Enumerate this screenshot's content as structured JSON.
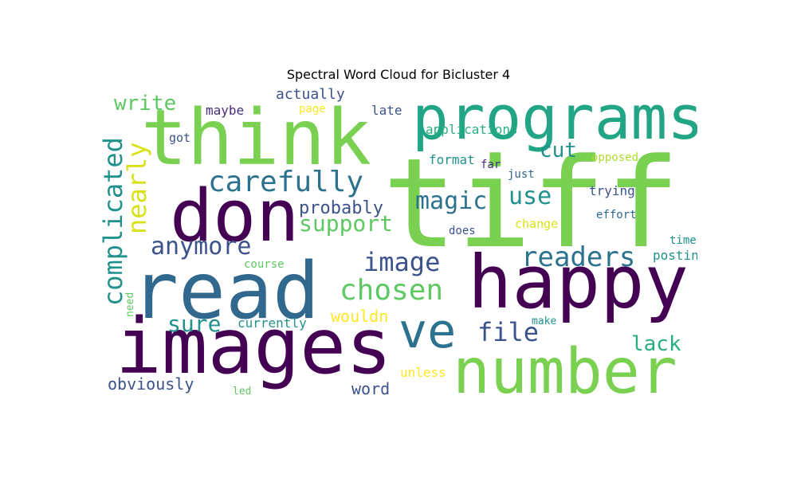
{
  "title": "Spectral Word Cloud for Bicluster 4",
  "palette": {
    "dark_purple": "#440154",
    "purple": "#472d7b",
    "indigo": "#3b528b",
    "blue": "#2c728e",
    "teal": "#21918c",
    "green_teal": "#28ae80",
    "green": "#5ec962",
    "lime": "#7ad151",
    "yellow_green": "#addc30",
    "yellow": "#fde725"
  },
  "words": [
    {
      "text": "tiff",
      "color": "#7ad151"
    },
    {
      "text": "programs",
      "color": "#21a585"
    },
    {
      "text": "think",
      "color": "#7ad151"
    },
    {
      "text": "don",
      "color": "#440154"
    },
    {
      "text": "read",
      "color": "#31688e"
    },
    {
      "text": "happy",
      "color": "#440154"
    },
    {
      "text": "images",
      "color": "#440154"
    },
    {
      "text": "number",
      "color": "#7ad151"
    },
    {
      "text": "ve",
      "color": "#2c728e"
    },
    {
      "text": "carefully",
      "color": "#2c728e"
    },
    {
      "text": "complicated",
      "color": "#21918c"
    },
    {
      "text": "nearly",
      "color": "#d8e219"
    },
    {
      "text": "write",
      "color": "#5ec962"
    },
    {
      "text": "anymore",
      "color": "#3b528b"
    },
    {
      "text": "support",
      "color": "#5ec962"
    },
    {
      "text": "probably",
      "color": "#3b528b"
    },
    {
      "text": "magic",
      "color": "#2c728e"
    },
    {
      "text": "use",
      "color": "#21918c"
    },
    {
      "text": "cut",
      "color": "#21918c"
    },
    {
      "text": "image",
      "color": "#3b528b"
    },
    {
      "text": "readers",
      "color": "#2c728e"
    },
    {
      "text": "chosen",
      "color": "#5ec962"
    },
    {
      "text": "file",
      "color": "#3b528b"
    },
    {
      "text": "sure",
      "color": "#21918c"
    },
    {
      "text": "lack",
      "color": "#28ae80"
    },
    {
      "text": "obviously",
      "color": "#3b528b"
    },
    {
      "text": "word",
      "color": "#3b528b"
    },
    {
      "text": "wouldn",
      "color": "#fde725"
    },
    {
      "text": "currently",
      "color": "#21918c"
    },
    {
      "text": "unless",
      "color": "#fde725"
    },
    {
      "text": "maybe",
      "color": "#472d7b"
    },
    {
      "text": "actually",
      "color": "#3b528b"
    },
    {
      "text": "page",
      "color": "#fde725"
    },
    {
      "text": "late",
      "color": "#3b528b"
    },
    {
      "text": "applications",
      "color": "#28ae80"
    },
    {
      "text": "got",
      "color": "#3b528b"
    },
    {
      "text": "format",
      "color": "#21918c"
    },
    {
      "text": "far",
      "color": "#472d7b"
    },
    {
      "text": "just",
      "color": "#31688e"
    },
    {
      "text": "opposed",
      "color": "#addc30"
    },
    {
      "text": "trying",
      "color": "#3b528b"
    },
    {
      "text": "effort",
      "color": "#31688e"
    },
    {
      "text": "change",
      "color": "#d8e219"
    },
    {
      "text": "does",
      "color": "#3b528b"
    },
    {
      "text": "time",
      "color": "#21918c"
    },
    {
      "text": "posting",
      "color": "#21918c"
    },
    {
      "text": "course",
      "color": "#5ec962"
    },
    {
      "text": "need",
      "color": "#5ec962"
    },
    {
      "text": "make",
      "color": "#21918c"
    },
    {
      "text": "led",
      "color": "#5ec962"
    }
  ]
}
